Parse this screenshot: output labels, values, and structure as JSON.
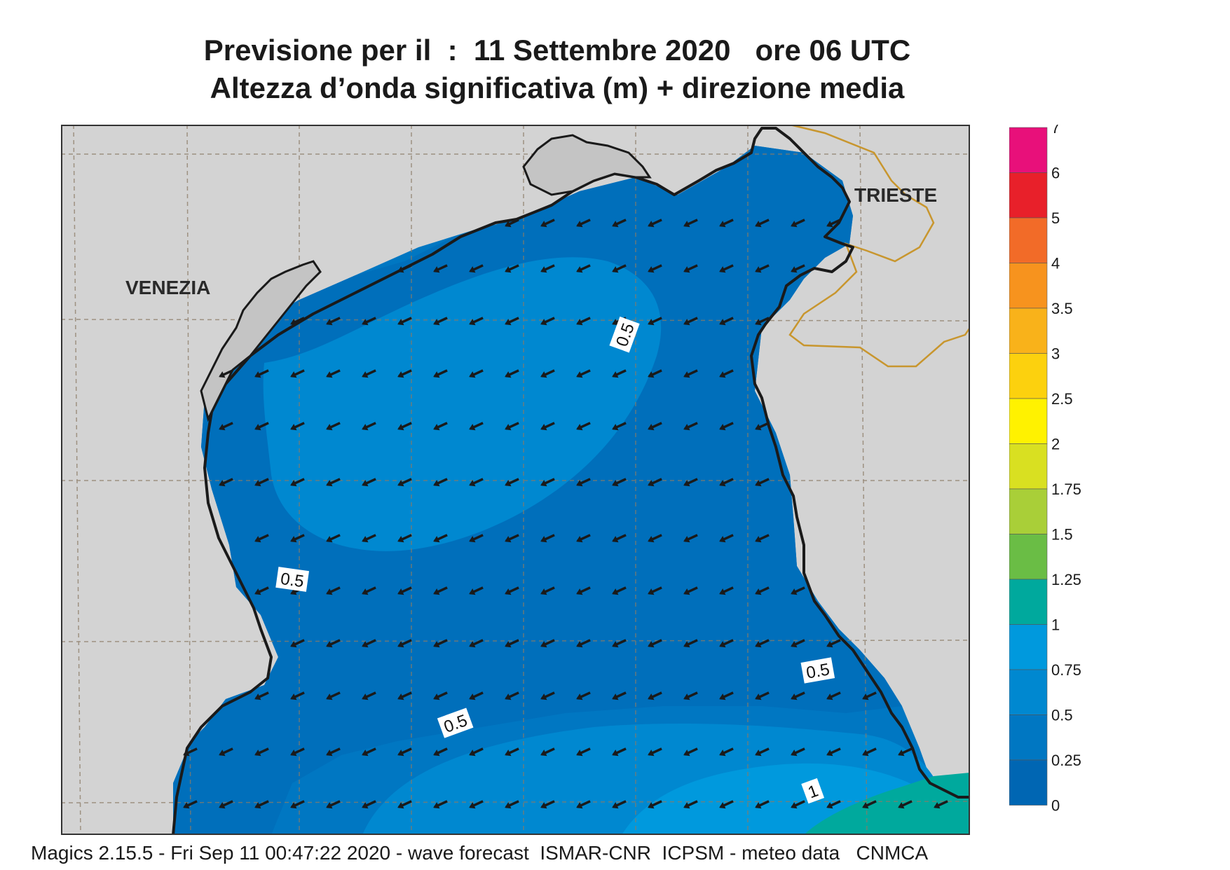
{
  "title": {
    "line1": "Previsione per il  :  11 Settembre 2020   ore 06 UTC",
    "line2": "Altezza d’onda significativa (m) + direzione media"
  },
  "map": {
    "cities": [
      {
        "id": "venezia",
        "name": "VENEZIA"
      },
      {
        "id": "trieste",
        "name": "TRIESTE"
      }
    ],
    "contour_labels": [
      {
        "id": "c1",
        "text": "0.5",
        "rotate": 8
      },
      {
        "id": "c2",
        "text": "0.5",
        "rotate": -70
      },
      {
        "id": "c3",
        "text": "0.5",
        "rotate": -10
      },
      {
        "id": "c4",
        "text": "0.5",
        "rotate": -20
      },
      {
        "id": "c5",
        "text": "1",
        "rotate": -20
      }
    ],
    "wave_direction": "towards south-west",
    "colors": {
      "land": "#d3d3d3",
      "sea_0_25": "#0066b3",
      "sea_0_25_0_5": "#0077c2",
      "sea_0_5_0_75": "#0088d0",
      "sea_0_75_1": "#0099dd",
      "sea_1_1_25": "#00a99d",
      "coast": "#1a1a1a",
      "border": "#c8962e",
      "arrow": "#1a1a1a"
    }
  },
  "legend": {
    "labels": [
      "7",
      "6",
      "5",
      "4",
      "3.5",
      "3",
      "2.5",
      "2",
      "1.75",
      "1.5",
      "1.25",
      "1",
      "0.75",
      "0.5",
      "0.25",
      "0"
    ],
    "colors": [
      "#e8107a",
      "#e8202a",
      "#f26b28",
      "#f7931e",
      "#f9b21a",
      "#fcd10e",
      "#fff200",
      "#d9e021",
      "#a9cf38",
      "#6abd45",
      "#00a99d",
      "#0099dd",
      "#0088d0",
      "#0077c2",
      "#0066b3"
    ]
  },
  "footer": "Magics 2.15.5 - Fri Sep 11 00:47:22 2020 - wave forecast  ISMAR-CNR  ICPSM - meteo data   CNMCA"
}
